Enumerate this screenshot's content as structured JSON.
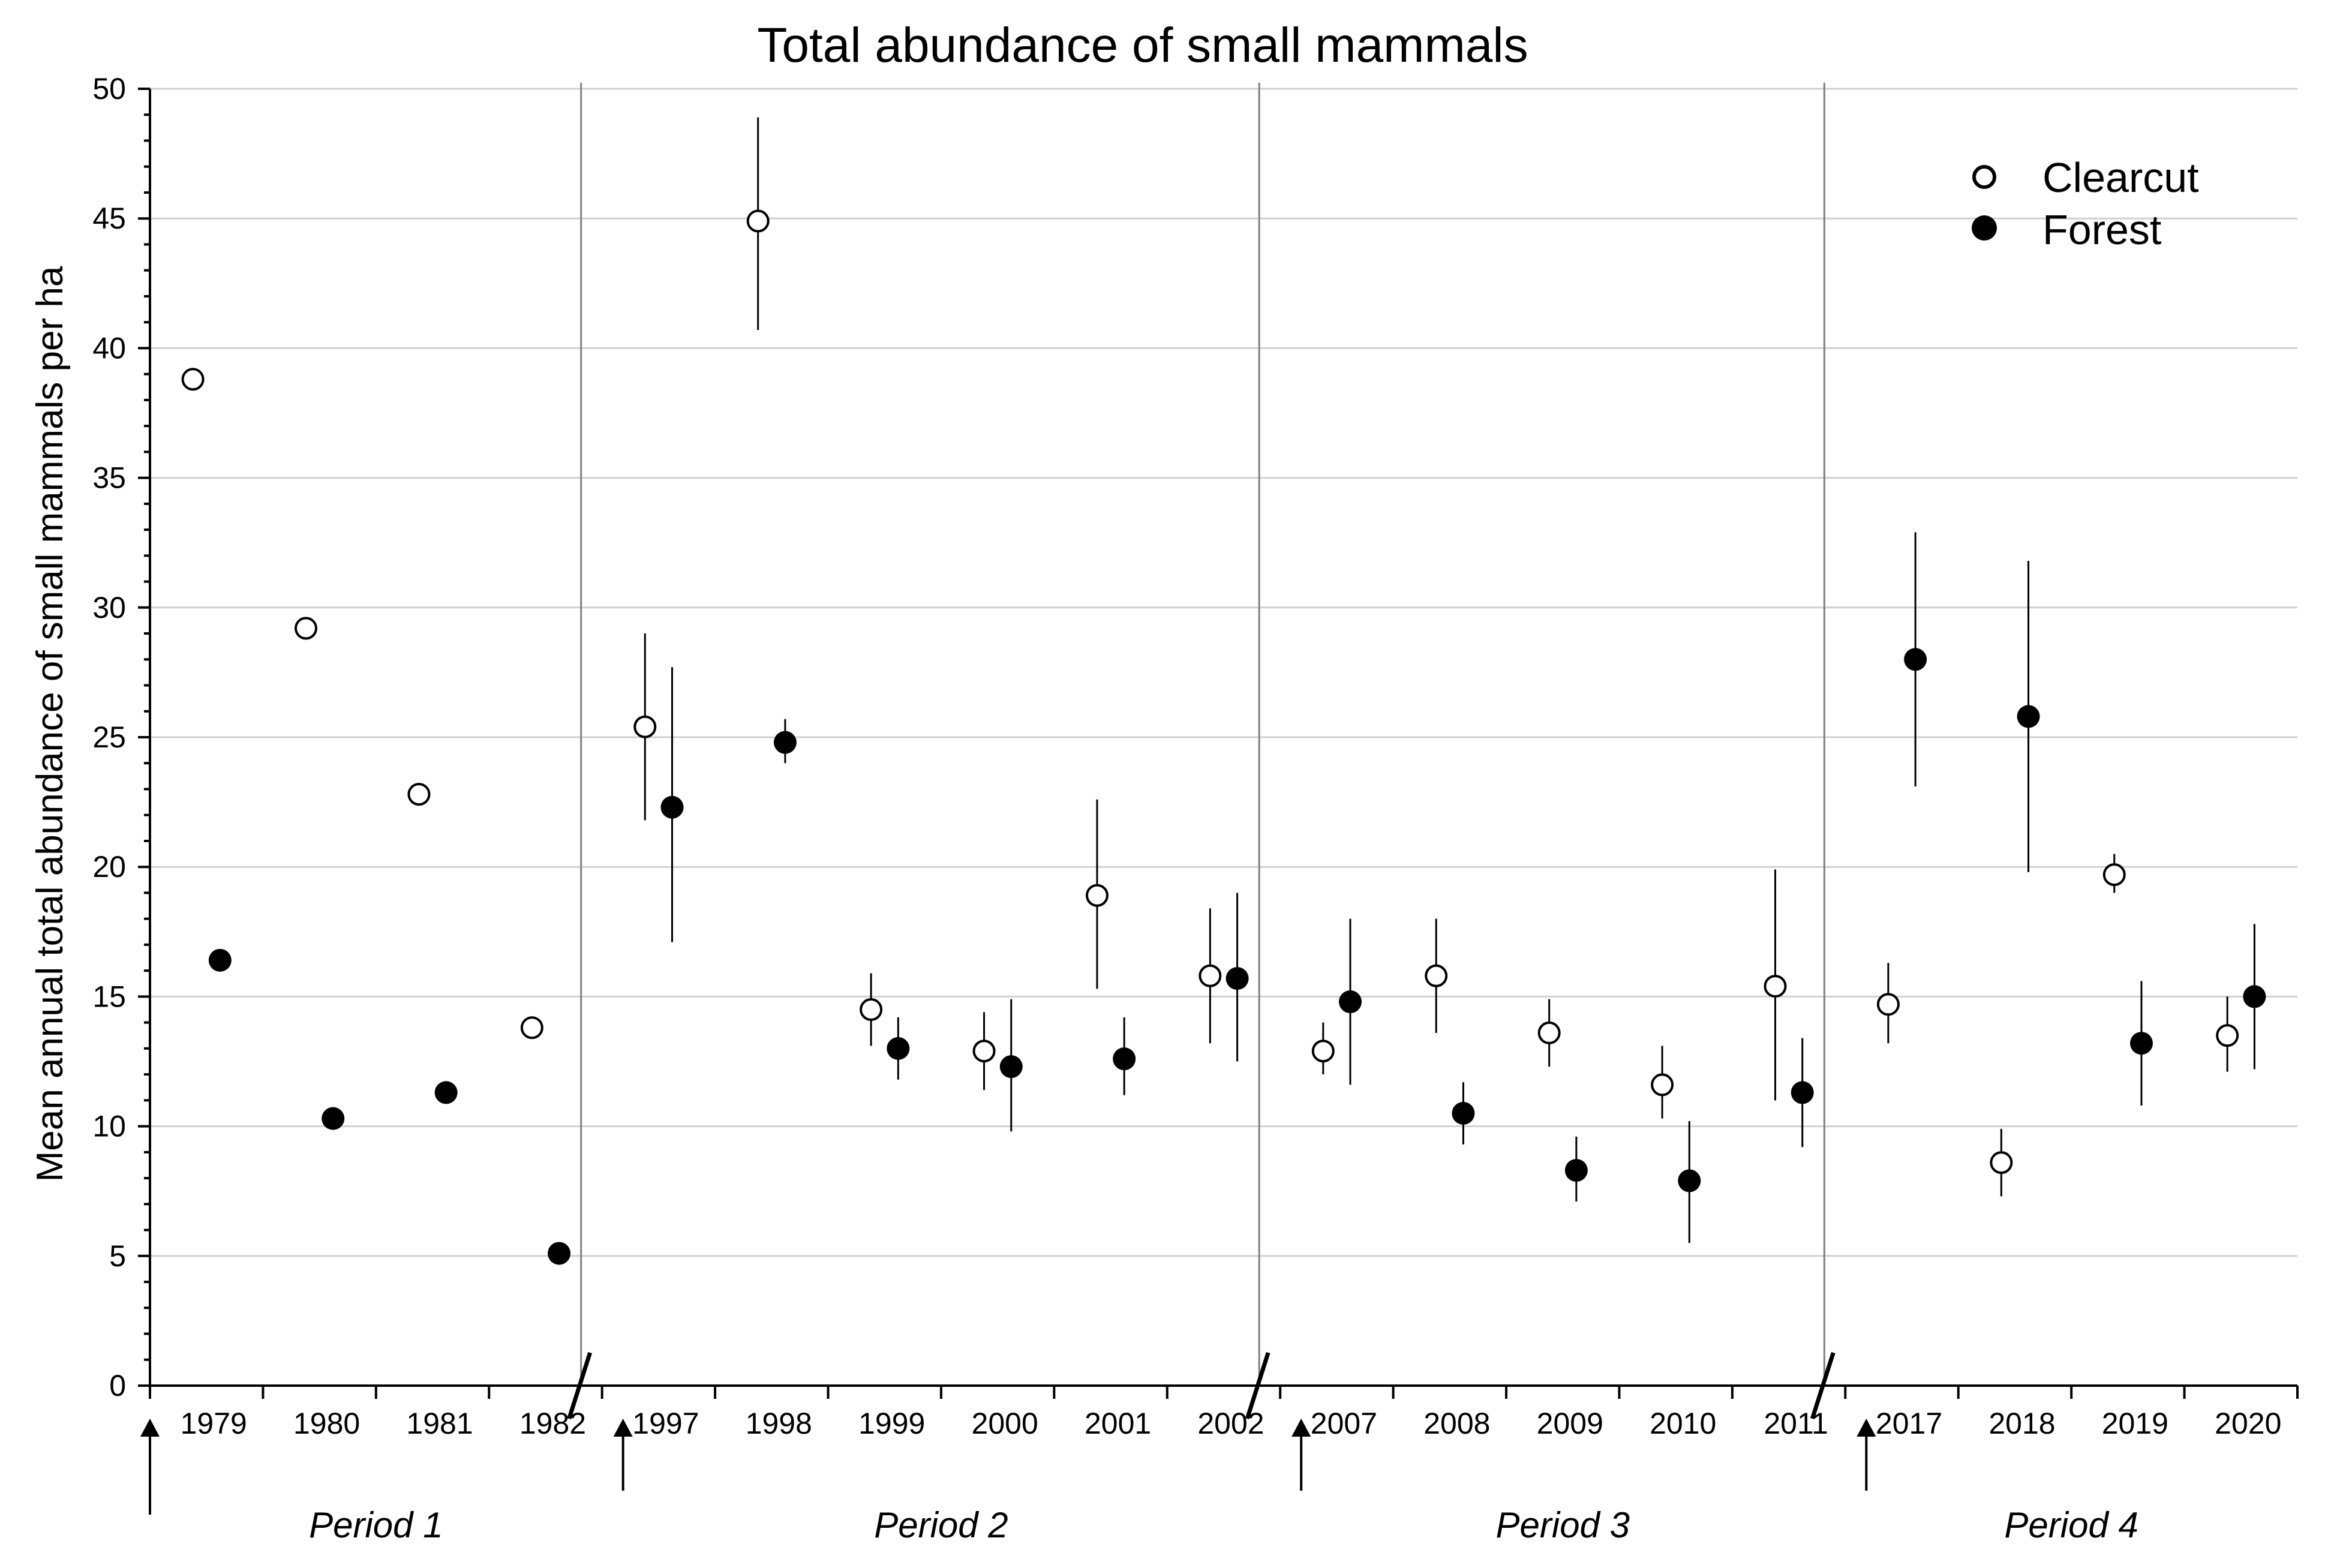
{
  "chart_data": {
    "type": "scatter",
    "title": "Total abundance of small mammals",
    "ylabel": "Mean annual total abundance of small mammals per ha",
    "xlabel": "",
    "ylim": [
      0,
      50
    ],
    "yticks": [
      0,
      5,
      10,
      15,
      20,
      25,
      30,
      35,
      40,
      45,
      50
    ],
    "grid": true,
    "legend_position": "top-right",
    "categories": [
      "1979",
      "1980",
      "1981",
      "1982",
      "1997",
      "1998",
      "1999",
      "2000",
      "2001",
      "2002",
      "2007",
      "2008",
      "2009",
      "2010",
      "2011",
      "2017",
      "2018",
      "2019",
      "2020"
    ],
    "periods": [
      {
        "label": "Period 1",
        "start": 0,
        "end": 3
      },
      {
        "label": "Period 2",
        "start": 4,
        "end": 9
      },
      {
        "label": "Period 3",
        "start": 10,
        "end": 14
      },
      {
        "label": "Period 4",
        "start": 15,
        "end": 18
      }
    ],
    "harvest_arrows": [
      "1979",
      "1997",
      "2007",
      "2017"
    ],
    "series": [
      {
        "name": "Clearcut",
        "marker": "open-circle",
        "values": [
          38.8,
          29.2,
          22.8,
          13.8,
          25.4,
          44.9,
          14.5,
          12.9,
          18.9,
          15.8,
          12.9,
          15.8,
          13.6,
          11.6,
          15.4,
          14.7,
          8.6,
          19.7,
          13.5
        ],
        "err_low": [
          null,
          null,
          null,
          null,
          21.8,
          40.7,
          13.1,
          11.4,
          15.3,
          13.2,
          12.0,
          13.6,
          12.3,
          10.3,
          11.0,
          13.2,
          7.3,
          19.0,
          12.1
        ],
        "err_high": [
          null,
          null,
          null,
          null,
          29.0,
          48.9,
          15.9,
          14.4,
          22.6,
          18.4,
          14.0,
          18.0,
          14.9,
          13.1,
          19.9,
          16.3,
          9.9,
          20.5,
          15.0
        ]
      },
      {
        "name": "Forest",
        "marker": "filled-circle",
        "values": [
          16.4,
          10.3,
          11.3,
          5.1,
          22.3,
          24.8,
          13.0,
          12.3,
          12.6,
          15.7,
          14.8,
          10.5,
          8.3,
          7.9,
          11.3,
          28.0,
          25.8,
          13.2,
          15.0
        ],
        "err_low": [
          null,
          null,
          null,
          null,
          17.1,
          24.0,
          11.8,
          9.8,
          11.2,
          12.5,
          11.6,
          9.3,
          7.1,
          5.5,
          9.2,
          23.1,
          19.8,
          10.8,
          12.2
        ],
        "err_high": [
          null,
          null,
          null,
          null,
          27.7,
          25.7,
          14.2,
          14.9,
          14.2,
          19.0,
          18.0,
          11.7,
          9.6,
          10.2,
          13.4,
          32.9,
          31.8,
          15.6,
          17.8
        ]
      }
    ]
  }
}
